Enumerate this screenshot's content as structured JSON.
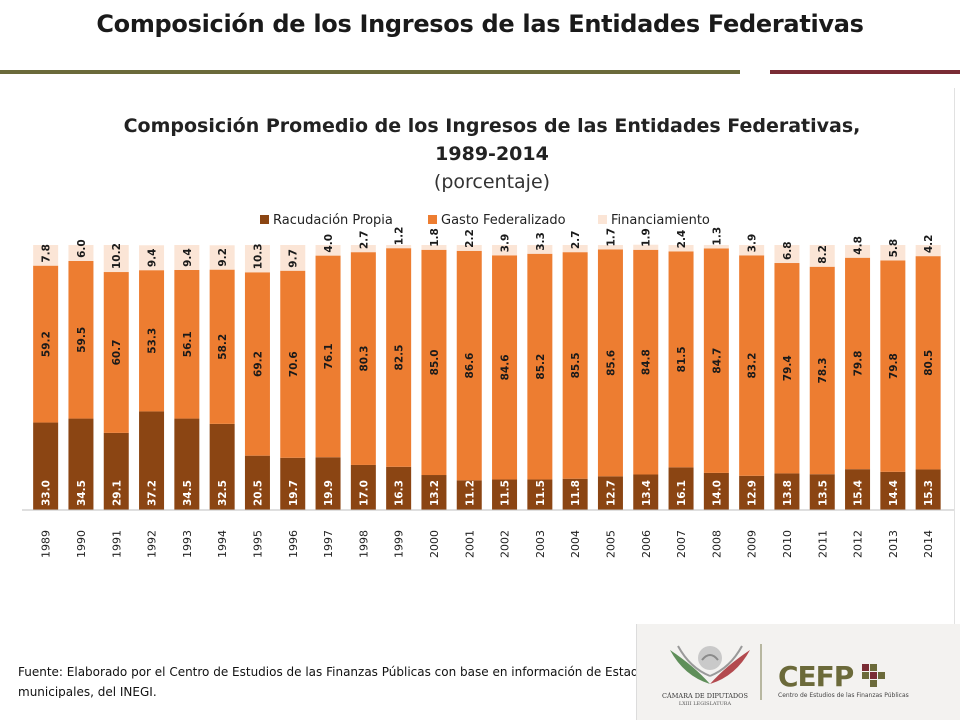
{
  "header": {
    "title": "Composición de los Ingresos de las Entidades Federativas"
  },
  "colors": {
    "rule_left": "#6b6a3a",
    "rule_right": "#7a2c35",
    "recaudacion": "#8b4513",
    "gasto": "#ed7d31",
    "financiamiento": "#fbe5d6"
  },
  "chart_data": {
    "type": "bar",
    "stacked": true,
    "orientation": "vertical",
    "title": "Composición Promedio de los Ingresos de las Entidades Federativas,",
    "title_line2": "1989-2014",
    "subtitle": "(porcentaje)",
    "legend_position": "top",
    "ylim": [
      0,
      100
    ],
    "grid": false,
    "categories": [
      "1989",
      "1990",
      "1991",
      "1992",
      "1993",
      "1994",
      "1995",
      "1996",
      "1997",
      "1998",
      "1999",
      "2000",
      "2001",
      "2002",
      "2003",
      "2004",
      "2005",
      "2006",
      "2007",
      "2008",
      "2009",
      "2010",
      "2011",
      "2012",
      "2013",
      "2014"
    ],
    "series": [
      {
        "name": "Racudación Propia",
        "color": "#8b4513",
        "values": [
          33.0,
          34.5,
          29.1,
          37.2,
          34.5,
          32.5,
          20.5,
          19.7,
          19.9,
          17.0,
          16.3,
          13.2,
          11.2,
          11.5,
          11.5,
          11.8,
          12.7,
          13.4,
          16.1,
          14.0,
          12.9,
          13.8,
          13.5,
          15.4,
          14.4,
          15.3
        ],
        "labels": [
          "33.0",
          "34.5",
          "29.1",
          "37.2",
          "34.5",
          "32.5",
          "20.5",
          "19.7",
          "19.9",
          "17.0",
          "16.3",
          "13.2",
          "11.2",
          "11.5",
          "11.5",
          "11.8",
          "12.7",
          "13.4",
          "16.1",
          "14.0",
          "12.9",
          "13.8",
          "13.5",
          "15.4",
          "14.4",
          "15.3"
        ]
      },
      {
        "name": "Gasto Federalizado",
        "color": "#ed7d31",
        "values": [
          59.2,
          59.5,
          60.7,
          53.3,
          56.1,
          58.2,
          69.2,
          70.6,
          76.1,
          80.3,
          82.5,
          85.0,
          86.6,
          84.6,
          85.2,
          85.5,
          85.6,
          84.8,
          81.5,
          84.7,
          83.2,
          79.4,
          78.3,
          79.8,
          79.8,
          80.5
        ],
        "labels": [
          "59.2",
          "59.5",
          "60.7",
          "53.3",
          "56.1",
          "58.2",
          "69.2",
          "70.6",
          "76.1",
          "80.3",
          "82.5",
          "85.0",
          "86.6",
          "84.6",
          "85.2",
          "85.5",
          "85.6",
          "84.8",
          "81.5",
          "84.7",
          "83.2",
          "79.4",
          "78.3",
          "79.8",
          "79.8",
          "80.5"
        ]
      },
      {
        "name": "Financiamiento",
        "color": "#fbe5d6",
        "values": [
          7.8,
          6.0,
          10.2,
          9.4,
          9.4,
          9.2,
          10.3,
          9.7,
          4.0,
          2.7,
          1.2,
          1.8,
          2.2,
          3.9,
          3.3,
          2.7,
          1.7,
          1.9,
          2.4,
          1.3,
          3.9,
          6.8,
          8.2,
          4.8,
          5.8,
          4.2
        ],
        "labels": [
          "7.8",
          "6.0",
          "10.2",
          "9.4",
          "9.4",
          "9.2",
          "10.3",
          "9.7",
          "4.0",
          "2.7",
          "1.2",
          "1.8",
          "2.2",
          "3.9",
          "3.3",
          "2.7",
          "1.7",
          "1.9",
          "2.4",
          "1.3",
          "3.9",
          "6.8",
          "8.2",
          "4.8",
          "5.8",
          "4.2"
        ]
      }
    ]
  },
  "source": {
    "text": "Fuente: Elaborado por el Centro de Estudios de las Finanzas Públicas con base en información de Estadísticas de finanzas públicas estatales y municipales, del INEGI."
  },
  "footer": {
    "camara_name": "CÁMARA DE DIPUTADOS",
    "camara_sub": "LXIII LEGISLATURA",
    "cefp_word": "CEFP",
    "cefp_sub": "Centro de Estudios de las Finanzas Públicas"
  }
}
